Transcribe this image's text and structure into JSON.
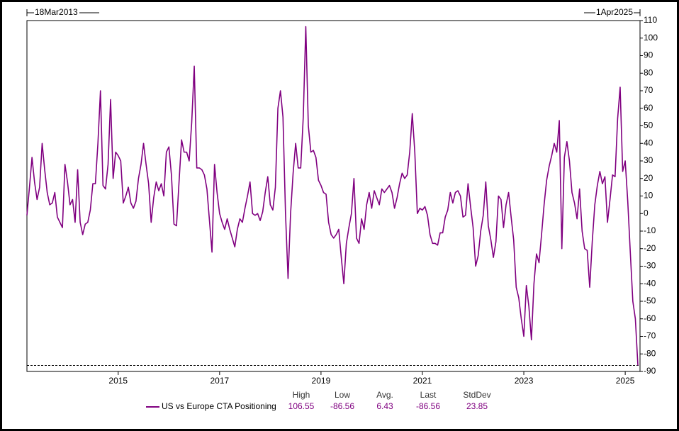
{
  "chart_data": {
    "type": "line",
    "start_label": "18Mar2013",
    "end_label": "1Apr2025",
    "xlim": [
      2013.2,
      2025.25
    ],
    "xticks": [
      2015,
      2017,
      2019,
      2021,
      2023,
      2025
    ],
    "ylim": [
      -90,
      110
    ],
    "yticks": [
      -90,
      -80,
      -70,
      -60,
      -50,
      -40,
      -30,
      -20,
      -10,
      0,
      10,
      20,
      30,
      40,
      50,
      60,
      70,
      80,
      90,
      100,
      110
    ],
    "x": [
      2013.2,
      2013.25,
      2013.3,
      2013.35,
      2013.4,
      2013.45,
      2013.5,
      2013.55,
      2013.6,
      2013.65,
      2013.7,
      2013.75,
      2013.8,
      2013.85,
      2013.9,
      2013.95,
      2014,
      2014.05,
      2014.1,
      2014.15,
      2014.2,
      2014.25,
      2014.3,
      2014.35,
      2014.4,
      2014.45,
      2014.5,
      2014.55,
      2014.6,
      2014.65,
      2014.7,
      2014.75,
      2014.8,
      2014.85,
      2014.9,
      2014.95,
      2015,
      2015.05,
      2015.1,
      2015.15,
      2015.2,
      2015.25,
      2015.3,
      2015.35,
      2015.4,
      2015.45,
      2015.5,
      2015.55,
      2015.6,
      2015.65,
      2015.7,
      2015.75,
      2015.8,
      2015.85,
      2015.9,
      2015.95,
      2016,
      2016.05,
      2016.1,
      2016.15,
      2016.2,
      2016.25,
      2016.3,
      2016.35,
      2016.4,
      2016.45,
      2016.5,
      2016.55,
      2016.6,
      2016.65,
      2016.7,
      2016.75,
      2016.8,
      2016.85,
      2016.9,
      2016.95,
      2017,
      2017.05,
      2017.1,
      2017.15,
      2017.2,
      2017.25,
      2017.3,
      2017.35,
      2017.4,
      2017.45,
      2017.5,
      2017.55,
      2017.6,
      2017.65,
      2017.7,
      2017.75,
      2017.8,
      2017.85,
      2017.9,
      2017.95,
      2018,
      2018.05,
      2018.1,
      2018.15,
      2018.2,
      2018.25,
      2018.3,
      2018.35,
      2018.4,
      2018.45,
      2018.5,
      2018.55,
      2018.6,
      2018.65,
      2018.7,
      2018.75,
      2018.8,
      2018.85,
      2018.9,
      2018.95,
      2019,
      2019.05,
      2019.1,
      2019.15,
      2019.2,
      2019.25,
      2019.3,
      2019.35,
      2019.4,
      2019.45,
      2019.5,
      2019.55,
      2019.6,
      2019.65,
      2019.7,
      2019.75,
      2019.8,
      2019.85,
      2019.9,
      2019.95,
      2020,
      2020.05,
      2020.1,
      2020.15,
      2020.2,
      2020.25,
      2020.3,
      2020.35,
      2020.4,
      2020.45,
      2020.5,
      2020.55,
      2020.6,
      2020.65,
      2020.7,
      2020.75,
      2020.8,
      2020.85,
      2020.9,
      2020.95,
      2021,
      2021.05,
      2021.1,
      2021.15,
      2021.2,
      2021.25,
      2021.3,
      2021.35,
      2021.4,
      2021.45,
      2021.5,
      2021.55,
      2021.6,
      2021.65,
      2021.7,
      2021.75,
      2021.8,
      2021.85,
      2021.9,
      2021.95,
      2022,
      2022.05,
      2022.1,
      2022.15,
      2022.2,
      2022.25,
      2022.3,
      2022.35,
      2022.4,
      2022.45,
      2022.5,
      2022.55,
      2022.6,
      2022.65,
      2022.7,
      2022.75,
      2022.8,
      2022.85,
      2022.9,
      2022.95,
      2023,
      2023.05,
      2023.1,
      2023.15,
      2023.2,
      2023.25,
      2023.3,
      2023.35,
      2023.4,
      2023.45,
      2023.5,
      2023.55,
      2023.6,
      2023.65,
      2023.7,
      2023.75,
      2023.8,
      2023.85,
      2023.9,
      2023.95,
      2024,
      2024.05,
      2024.1,
      2024.15,
      2024.2,
      2024.25,
      2024.3,
      2024.35,
      2024.4,
      2024.45,
      2024.5,
      2024.55,
      2024.6,
      2024.65,
      2024.7,
      2024.75,
      2024.8,
      2024.85,
      2024.9,
      2024.95,
      2025,
      2025.05,
      2025.1,
      2025.15,
      2025.2,
      2025.25
    ],
    "series": [
      {
        "name": "US vs Europe CTA Positioning",
        "color": "#800080",
        "values": [
          -1,
          15,
          32,
          18,
          8,
          15,
          40,
          25,
          12,
          5,
          6,
          12,
          -2,
          -5,
          -8,
          28,
          18,
          5,
          8,
          -5,
          25,
          -5,
          -12,
          -6,
          -5,
          2,
          17,
          17,
          40,
          70,
          16,
          14,
          28,
          65,
          20,
          35,
          33,
          30,
          6,
          10,
          15,
          6,
          3,
          7,
          20,
          28,
          40,
          28,
          17,
          -5,
          9,
          18,
          13,
          17,
          10,
          35,
          38,
          22,
          -6,
          -7,
          18,
          42,
          35,
          35,
          30,
          52,
          84,
          26,
          26,
          25,
          22,
          14,
          -4,
          -22,
          28,
          12,
          0,
          -5,
          -9,
          -3,
          -9,
          -14,
          -19,
          -9,
          -3,
          -5,
          3,
          10,
          18,
          0,
          -1,
          0,
          -4,
          1,
          12,
          21,
          5,
          2,
          15,
          60,
          70,
          55,
          0,
          -37,
          0,
          23,
          40,
          26,
          26,
          55,
          106.55,
          50,
          35,
          36,
          32,
          19,
          16,
          12,
          11,
          -5,
          -12,
          -14,
          -12,
          -9,
          -25,
          -40,
          -17,
          -8,
          0,
          20,
          -14,
          -17,
          -3,
          -9,
          5,
          12,
          3,
          13,
          9,
          5,
          14,
          12,
          14,
          16,
          12,
          3,
          9,
          17,
          23,
          20,
          22,
          35,
          57,
          35,
          0,
          3,
          2,
          4,
          -1,
          -12,
          -17,
          -17,
          -18,
          -11,
          -11,
          -2,
          2,
          12,
          6,
          12,
          13,
          10,
          -2,
          -1,
          17,
          4,
          -8,
          -30,
          -24,
          -10,
          -1,
          18,
          -7,
          -15,
          -25,
          -16,
          10,
          8,
          -8,
          5,
          12,
          -2,
          -15,
          -42,
          -48,
          -60,
          -70,
          -41,
          -53,
          -72,
          -40,
          -23,
          -28,
          -12,
          5,
          19,
          27,
          33,
          40,
          35,
          53,
          -20,
          32,
          41,
          30,
          12,
          6,
          -3,
          14,
          -10,
          -20,
          -21,
          -42,
          -16,
          5,
          16,
          24,
          17,
          21,
          -5,
          8,
          22,
          21,
          54,
          72,
          24,
          30,
          7,
          -22,
          -50,
          -60,
          -86.56
        ]
      }
    ],
    "stats": {
      "headers": [
        "High",
        "Low",
        "Avg.",
        "Last",
        "StdDev"
      ],
      "values": [
        106.55,
        -86.56,
        6.43,
        -86.56,
        23.85
      ]
    }
  }
}
